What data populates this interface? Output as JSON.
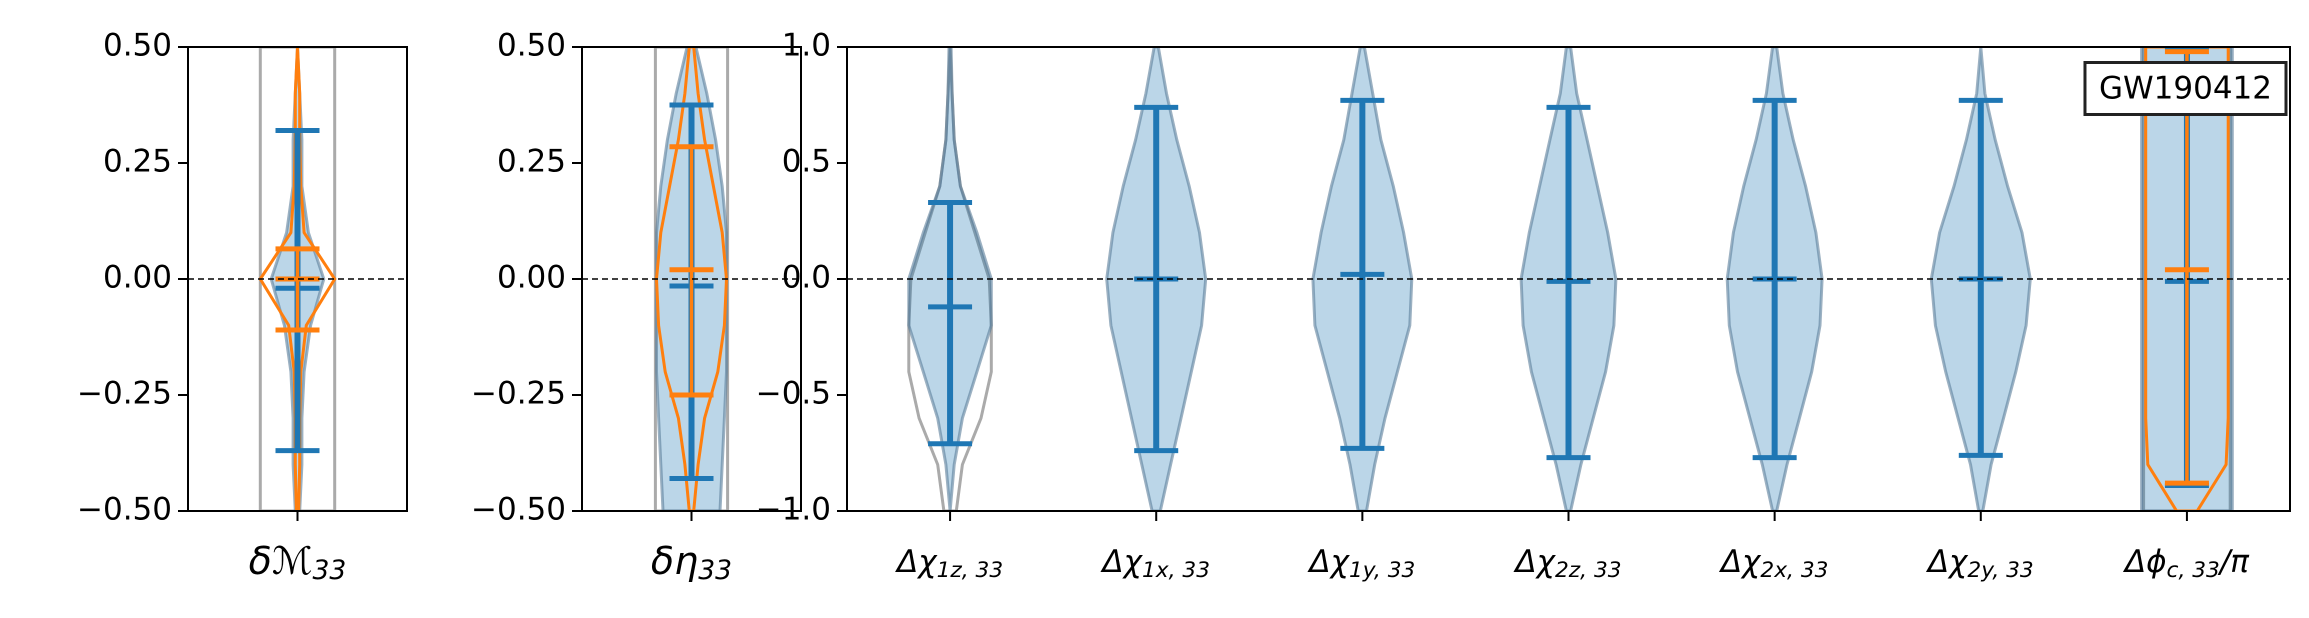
{
  "chart_data": [
    {
      "type": "violin",
      "categories": [
        [
          "δℳ",
          "33"
        ]
      ],
      "ylim": [
        -0.5,
        0.5
      ],
      "yticks": [
        {
          "value": -0.5,
          "label": "−0.50"
        },
        {
          "value": -0.25,
          "label": "−0.25"
        },
        {
          "value": 0,
          "label": "0.00"
        },
        {
          "value": 0.25,
          "label": "0.25"
        },
        {
          "value": 0.5,
          "label": "0.50"
        }
      ],
      "reference_line": 0,
      "density_y": [
        -0.5,
        -0.4,
        -0.3,
        -0.2,
        -0.1,
        0,
        0.1,
        0.2,
        0.3,
        0.4,
        0.5
      ],
      "series": [
        {
          "color": "#aaaaaa",
          "filled": false,
          "density": [
            [
              0.17,
              0.17,
              0.17,
              0.17,
              0.17,
              0.17,
              0.17,
              0.17,
              0.17,
              0.17,
              0.17
            ]
          ]
        },
        {
          "color": "#1f77b4",
          "filled": true,
          "values": [
            -0.02
          ],
          "lower": [
            -0.37
          ],
          "upper": [
            0.32
          ],
          "density": [
            [
              0.01,
              0.02,
              0.02,
              0.03,
              0.06,
              0.12,
              0.05,
              0.02,
              0.02,
              0.01,
              0.0
            ]
          ]
        },
        {
          "color": "#ff7f0e",
          "filled": false,
          "values": [
            0.0
          ],
          "lower": [
            -0.11
          ],
          "upper": [
            0.065
          ],
          "density": [
            [
              0.005,
              0.01,
              0.01,
              0.015,
              0.04,
              0.17,
              0.03,
              0.015,
              0.01,
              0.01,
              0.0
            ]
          ]
        }
      ]
    },
    {
      "type": "violin",
      "categories": [
        [
          "δη",
          "33"
        ]
      ],
      "ylim": [
        -0.5,
        0.5
      ],
      "yticks": [
        {
          "value": -0.5,
          "label": "−0.50"
        },
        {
          "value": -0.25,
          "label": "−0.25"
        },
        {
          "value": 0,
          "label": "0.00"
        },
        {
          "value": 0.25,
          "label": "0.25"
        },
        {
          "value": 0.5,
          "label": "0.50"
        }
      ],
      "reference_line": 0,
      "density_y": [
        -0.5,
        -0.4,
        -0.3,
        -0.2,
        -0.1,
        0,
        0.1,
        0.2,
        0.3,
        0.4,
        0.5
      ],
      "series": [
        {
          "color": "#aaaaaa",
          "filled": false,
          "density": [
            [
              0.165,
              0.165,
              0.165,
              0.165,
              0.165,
              0.165,
              0.165,
              0.165,
              0.165,
              0.165,
              0.165
            ]
          ]
        },
        {
          "color": "#1f77b4",
          "filled": true,
          "values": [
            -0.015
          ],
          "lower": [
            -0.43
          ],
          "upper": [
            0.375
          ],
          "density": [
            [
              0.13,
              0.14,
              0.15,
              0.16,
              0.16,
              0.16,
              0.16,
              0.14,
              0.11,
              0.07,
              0.02
            ]
          ]
        },
        {
          "color": "#ff7f0e",
          "filled": false,
          "values": [
            0.02
          ],
          "lower": [
            -0.25
          ],
          "upper": [
            0.285
          ],
          "density": [
            [
              0.01,
              0.03,
              0.06,
              0.12,
              0.15,
              0.16,
              0.14,
              0.1,
              0.06,
              0.03,
              0.01
            ]
          ]
        }
      ]
    },
    {
      "type": "violin",
      "categories": [
        [
          "Δχ",
          "1z, 33"
        ],
        [
          "Δχ",
          "1x, 33"
        ],
        [
          "Δχ",
          "1y, 33"
        ],
        [
          "Δχ",
          "2z, 33"
        ],
        [
          "Δχ",
          "2x, 33"
        ],
        [
          "Δχ",
          "2y, 33"
        ],
        [
          "Δϕ",
          "c, 33",
          "/π"
        ]
      ],
      "ylim": [
        -1.0,
        1.0
      ],
      "yticks": [
        {
          "value": -1,
          "label": "−1.0"
        },
        {
          "value": -0.5,
          "label": "−0.5"
        },
        {
          "value": 0,
          "label": "0.0"
        },
        {
          "value": 0.5,
          "label": "0.5"
        },
        {
          "value": 1,
          "label": "1.0"
        }
      ],
      "reference_line": 0,
      "annotation": "GW190412",
      "density_y": [
        -1,
        -0.8,
        -0.6,
        -0.4,
        -0.2,
        0,
        0.2,
        0.4,
        0.6,
        0.8,
        1
      ],
      "series": [
        {
          "color": "#aaaaaa",
          "filled": false,
          "density": [
            [
              0.03,
              0.06,
              0.15,
              0.2,
              0.2,
              0.19,
              0.12,
              0.05,
              0.02,
              0.01,
              0.0
            ],
            null,
            null,
            null,
            null,
            null,
            [
              0.21,
              0.21,
              0.21,
              0.21,
              0.21,
              0.21,
              0.21,
              0.21,
              0.21,
              0.21,
              0.21
            ]
          ]
        },
        {
          "color": "#1f77b4",
          "filled": true,
          "values": [
            -0.12,
            0.0,
            0.02,
            -0.01,
            0.0,
            0.0,
            -0.01
          ],
          "lower": [
            -0.71,
            -0.74,
            -0.73,
            -0.77,
            -0.77,
            -0.76,
            -0.89
          ],
          "upper": [
            0.33,
            0.74,
            0.77,
            0.74,
            0.77,
            0.77,
            1.0
          ],
          "density": [
            [
              0.0,
              0.02,
              0.06,
              0.13,
              0.2,
              0.2,
              0.13,
              0.05,
              0.02,
              0.01,
              0.005
            ],
            [
              0.02,
              0.07,
              0.12,
              0.17,
              0.22,
              0.24,
              0.21,
              0.16,
              0.1,
              0.05,
              0.01
            ],
            [
              0.02,
              0.06,
              0.11,
              0.17,
              0.23,
              0.24,
              0.2,
              0.15,
              0.09,
              0.05,
              0.01
            ],
            [
              0.01,
              0.06,
              0.12,
              0.18,
              0.22,
              0.23,
              0.19,
              0.14,
              0.09,
              0.04,
              0.01
            ],
            [
              0.01,
              0.06,
              0.12,
              0.18,
              0.22,
              0.23,
              0.2,
              0.15,
              0.09,
              0.04,
              0.01
            ],
            [
              0.01,
              0.05,
              0.11,
              0.17,
              0.22,
              0.24,
              0.2,
              0.13,
              0.07,
              0.02,
              0.0
            ],
            [
              0.22,
              0.22,
              0.22,
              0.22,
              0.22,
              0.22,
              0.22,
              0.22,
              0.22,
              0.22,
              0.22
            ]
          ]
        },
        {
          "color": "#ff7f0e",
          "filled": false,
          "values": [
            null,
            null,
            null,
            null,
            null,
            null,
            0.04
          ],
          "lower": [
            null,
            null,
            null,
            null,
            null,
            null,
            -0.88
          ],
          "upper": [
            null,
            null,
            null,
            null,
            null,
            null,
            0.98
          ],
          "density": [
            null,
            null,
            null,
            null,
            null,
            null,
            [
              0.05,
              0.19,
              0.2,
              0.2,
              0.2,
              0.2,
              0.2,
              0.2,
              0.2,
              0.2,
              0.2
            ]
          ]
        }
      ]
    }
  ]
}
